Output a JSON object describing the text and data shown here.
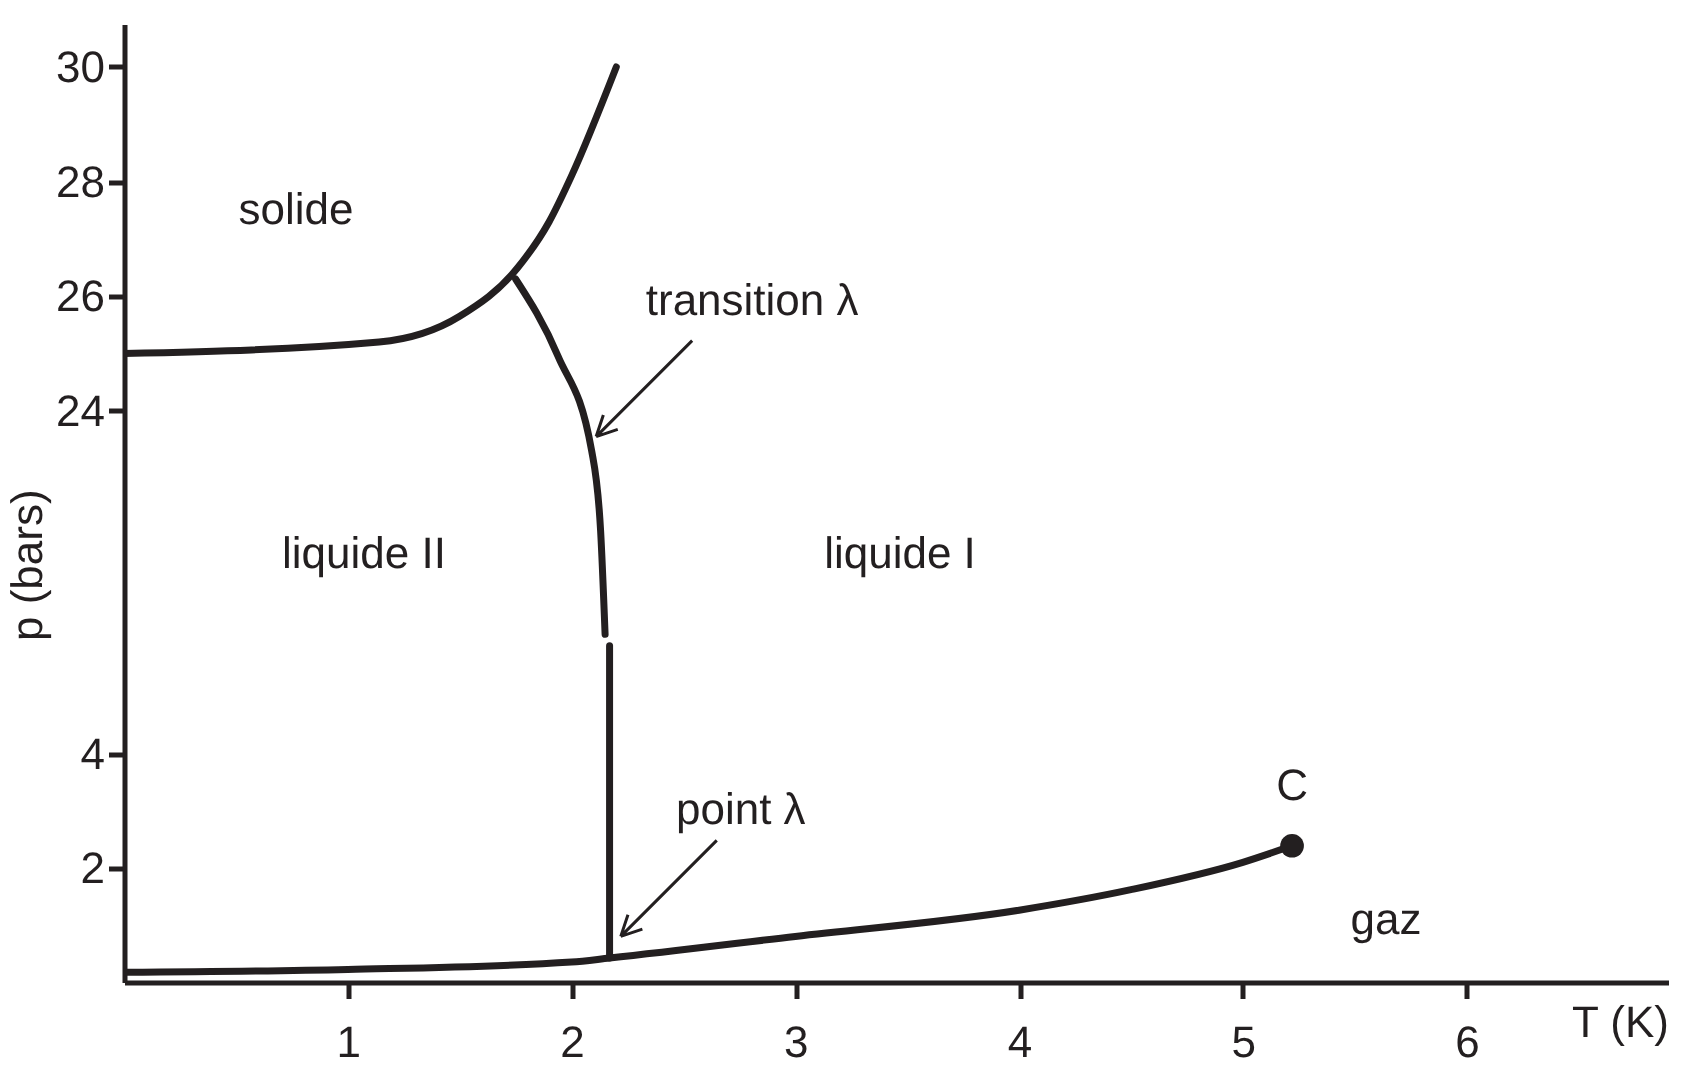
{
  "chart_data": [
    {
      "type": "line",
      "xlim": [
        0,
        6.9
      ],
      "ylim": [
        20,
        30.75
      ],
      "yticks": [
        24,
        26,
        28,
        30
      ],
      "tick_labels": "y",
      "ylabel": "p (bars)",
      "series": [
        {
          "color": "#231f20",
          "x": [
            0,
            1.14,
            1.5,
            1.76,
            1.9,
            2.0,
            2.2
          ],
          "values": [
            25.0,
            25.2,
            25.65,
            26.5,
            27.3,
            28.1,
            30.0
          ]
        },
        {
          "color": "#231f20",
          "x": [
            1.75,
            1.94,
            2.09,
            2.13,
            2.15
          ],
          "values": [
            26.3,
            24.95,
            23.3,
            21.9,
            20.1
          ]
        }
      ],
      "annotations": [
        "solide",
        "liquide II",
        "liquide I",
        {
          "text": "transition λ",
          "x": 2.11,
          "y": 23.55
        }
      ]
    },
    {
      "type": "line",
      "xlim": [
        0,
        6.9
      ],
      "ylim": [
        0,
        6
      ],
      "xticks": [
        1,
        2,
        3,
        4,
        5,
        6
      ],
      "yticks": [
        2,
        4
      ],
      "xlabel": "T (K)",
      "series": [
        {
          "color": "#231f20",
          "x": [
            2.17,
            2.17
          ],
          "values": [
            0.42,
            5.9
          ]
        },
        {
          "color": "#231f20",
          "x": [
            0,
            1,
            2,
            2.17,
            3,
            4,
            4.5,
            5,
            5.22
          ],
          "values": [
            0.17,
            0.22,
            0.35,
            0.42,
            0.8,
            1.26,
            1.62,
            2.1,
            2.39
          ]
        },
        {
          "type": "scatter",
          "marker": "circle",
          "color": "#231f20",
          "x": [
            5.22
          ],
          "values": [
            2.39
          ]
        }
      ],
      "annotations": [
        {
          "text": "point λ",
          "x": 2.22,
          "y": 0.8
        },
        {
          "text": "C",
          "x": 5.22,
          "y": 2.39
        },
        "gaz"
      ]
    }
  ]
}
